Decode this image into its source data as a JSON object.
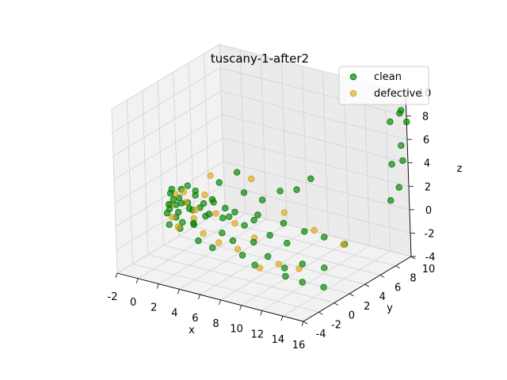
{
  "chart_data": {
    "type": "scatter",
    "projection": "3d",
    "title": "tuscany-1-after2",
    "xlabel": "x",
    "ylabel": "y",
    "zlabel": "z",
    "xlim": [
      -2,
      16
    ],
    "ylim": [
      -4,
      10
    ],
    "zlim": [
      -4,
      10
    ],
    "xticks": [
      "-2",
      "0",
      "2",
      "4",
      "6",
      "8",
      "10",
      "12",
      "14",
      "16"
    ],
    "yticks": [
      "-4",
      "-2",
      "0",
      "2",
      "4",
      "6",
      "8",
      "10"
    ],
    "zticks": [
      "-4",
      "-2",
      "0",
      "2",
      "4",
      "6",
      "8",
      "10"
    ],
    "grid": true,
    "legend_position": "top-right",
    "series": [
      {
        "name": "clean",
        "color": "#008000",
        "points": [
          [
            0.0,
            0.0,
            0.0
          ],
          [
            0.1,
            0.2,
            0.3
          ],
          [
            0.2,
            0.0,
            0.8
          ],
          [
            0.0,
            0.5,
            1.5
          ],
          [
            0.3,
            0.3,
            2.0
          ],
          [
            0.1,
            0.1,
            -1.0
          ],
          [
            0.4,
            0.6,
            -0.5
          ],
          [
            0.2,
            0.9,
            0.4
          ],
          [
            0.5,
            0.2,
            1.2
          ],
          [
            0.6,
            0.8,
            -1.5
          ],
          [
            0.3,
            1.2,
            0.9
          ],
          [
            0.8,
            0.4,
            0.1
          ],
          [
            0.7,
            1.0,
            1.8
          ],
          [
            1.0,
            0.6,
            -0.8
          ],
          [
            0.9,
            1.5,
            0.5
          ],
          [
            1.2,
            0.3,
            1.0
          ],
          [
            1.1,
            1.8,
            -0.2
          ],
          [
            1.4,
            0.9,
            2.3
          ],
          [
            1.5,
            1.4,
            -1.2
          ],
          [
            1.3,
            2.0,
            1.4
          ],
          [
            1.8,
            0.5,
            0.6
          ],
          [
            1.7,
            1.1,
            -0.9
          ],
          [
            2.0,
            1.6,
            0.3
          ],
          [
            2.2,
            0.8,
            1.7
          ],
          [
            2.4,
            2.2,
            -0.4
          ],
          [
            2.6,
            1.3,
            0.9
          ],
          [
            2.8,
            0.2,
            -1.8
          ],
          [
            3.0,
            1.9,
            1.1
          ],
          [
            3.2,
            0.7,
            0.2
          ],
          [
            3.5,
            2.5,
            -0.6
          ],
          [
            3.8,
            1.0,
            1.4
          ],
          [
            4.0,
            0.4,
            -2.2
          ],
          [
            4.3,
            1.8,
            0.7
          ],
          [
            4.6,
            0.9,
            -1.0
          ],
          [
            5.0,
            2.1,
            0.4
          ],
          [
            5.4,
            1.2,
            -1.6
          ],
          [
            5.8,
            0.3,
            0.9
          ],
          [
            6.2,
            1.7,
            -0.3
          ],
          [
            6.6,
            0.8,
            -2.4
          ],
          [
            7.0,
            2.4,
            0.5
          ],
          [
            7.5,
            1.1,
            -1.2
          ],
          [
            8.0,
            0.5,
            -2.8
          ],
          [
            8.5,
            1.9,
            -0.7
          ],
          [
            9.0,
            0.9,
            -2.0
          ],
          [
            9.6,
            2.6,
            -1.4
          ],
          [
            10.2,
            1.4,
            -2.9
          ],
          [
            10.8,
            0.7,
            -3.2
          ],
          [
            11.5,
            2.0,
            -2.5
          ],
          [
            12.2,
            1.0,
            -3.5
          ],
          [
            13.0,
            2.8,
            -2.8
          ],
          [
            13.8,
            1.6,
            -3.8
          ],
          [
            4.5,
            4.0,
            1.2
          ],
          [
            5.5,
            5.0,
            0.4
          ],
          [
            6.5,
            6.0,
            1.0
          ],
          [
            7.2,
            7.2,
            0.8
          ],
          [
            8.0,
            8.0,
            1.6
          ],
          [
            3.5,
            4.5,
            2.5
          ],
          [
            2.5,
            3.5,
            1.8
          ],
          [
            6.0,
            3.2,
            -0.5
          ],
          [
            7.8,
            4.6,
            -0.9
          ],
          [
            9.2,
            5.4,
            -1.6
          ],
          [
            10.5,
            6.2,
            -2.1
          ],
          [
            12.0,
            6.8,
            -2.6
          ],
          [
            14.5,
            9.6,
            0.6
          ],
          [
            15.2,
            9.8,
            1.8
          ],
          [
            15.8,
            9.6,
            4.3
          ],
          [
            16.0,
            9.2,
            5.8
          ],
          [
            15.0,
            9.2,
            7.6
          ],
          [
            15.5,
            9.8,
            8.2
          ],
          [
            15.8,
            9.6,
            8.6
          ],
          [
            16.0,
            10.0,
            7.5
          ],
          [
            14.8,
            9.5,
            3.8
          ]
        ]
      },
      {
        "name": "defective",
        "color": "#DAA520",
        "points": [
          [
            0.1,
            0.3,
            0.6
          ],
          [
            0.4,
            0.1,
            -0.3
          ],
          [
            0.3,
            0.7,
            1.4
          ],
          [
            0.8,
            0.3,
            -1.1
          ],
          [
            1.0,
            1.1,
            0.7
          ],
          [
            1.3,
            0.5,
            1.9
          ],
          [
            1.6,
            1.3,
            -0.6
          ],
          [
            2.1,
            0.9,
            0.4
          ],
          [
            2.5,
            1.6,
            1.5
          ],
          [
            3.0,
            0.6,
            -1.3
          ],
          [
            3.6,
            1.5,
            0.2
          ],
          [
            4.4,
            0.7,
            -1.8
          ],
          [
            5.2,
            1.8,
            -0.4
          ],
          [
            6.0,
            1.0,
            -2.1
          ],
          [
            7.2,
            1.6,
            -1.1
          ],
          [
            8.4,
            0.6,
            -3.0
          ],
          [
            9.8,
            1.2,
            -2.6
          ],
          [
            11.0,
            2.2,
            -3.1
          ],
          [
            4.8,
            4.6,
            2.2
          ],
          [
            7.6,
            5.0,
            -0.2
          ],
          [
            10.0,
            5.6,
            -1.4
          ],
          [
            12.5,
            6.0,
            -2.2
          ],
          [
            2.2,
            2.8,
            2.6
          ]
        ]
      }
    ]
  }
}
